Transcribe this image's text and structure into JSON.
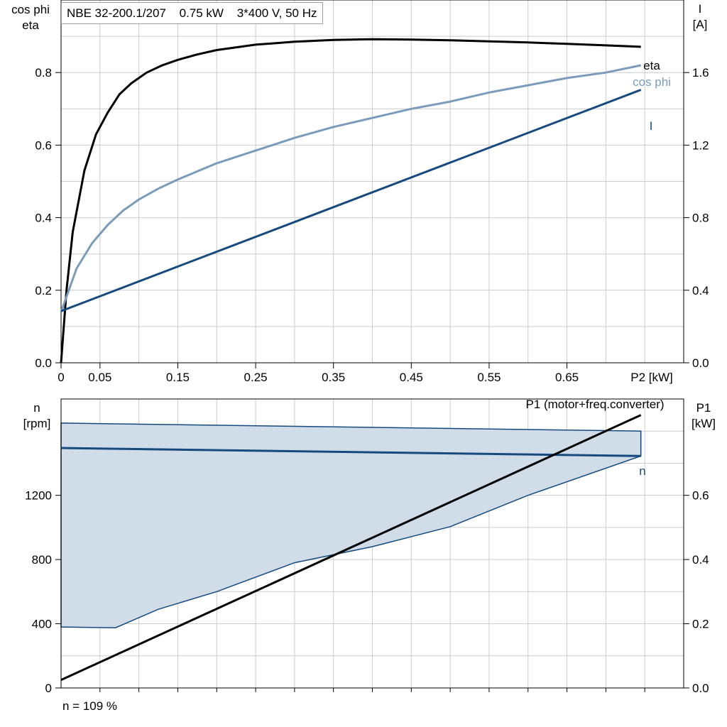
{
  "header": {
    "model": "NBE 32-200.1/207",
    "power": "0.75 kW",
    "supply": "3*400 V, 50 Hz"
  },
  "footer": {
    "speed_note": "n = 109 %"
  },
  "colors": {
    "eta": "#000000",
    "cos_phi": "#7a9cba",
    "current": "#164a7e",
    "speed": "#164a7e",
    "speed_band_fill": "#d0dce8",
    "p1": "#000000",
    "grid": "#cccccc"
  },
  "chart_data": [
    {
      "type": "line",
      "left_axis_label": [
        "cos phi",
        "eta"
      ],
      "right_axis_label": [
        "I",
        "[A]"
      ],
      "xlabel": "P2 [kW]",
      "xlim": [
        0,
        0.8
      ],
      "ylim": [
        0,
        1.0
      ],
      "y2lim": [
        0,
        2.0
      ],
      "x_ticks": [
        "0",
        "0.05",
        "0.15",
        "0.25",
        "0.35",
        "0.45",
        "0.55",
        "0.65"
      ],
      "x_tick_values": [
        0,
        0.05,
        0.15,
        0.25,
        0.35,
        0.45,
        0.55,
        0.65
      ],
      "y_ticks": [
        "0.0",
        "0.2",
        "0.4",
        "0.6",
        "0.8"
      ],
      "y_tick_values": [
        0,
        0.2,
        0.4,
        0.6,
        0.8
      ],
      "y2_ticks": [
        "0.0",
        "0.4",
        "0.8",
        "1.2",
        "1.6"
      ],
      "y2_tick_values": [
        0,
        0.4,
        0.8,
        1.2,
        1.6
      ],
      "grid": true,
      "series": [
        {
          "name": "eta",
          "axis": "left",
          "x": [
            0,
            0.007,
            0.015,
            0.03,
            0.045,
            0.06,
            0.075,
            0.09,
            0.11,
            0.13,
            0.15,
            0.175,
            0.2,
            0.25,
            0.3,
            0.35,
            0.4,
            0.45,
            0.5,
            0.55,
            0.6,
            0.65,
            0.7,
            0.745
          ],
          "values": [
            0,
            0.2,
            0.36,
            0.53,
            0.63,
            0.69,
            0.74,
            0.77,
            0.8,
            0.82,
            0.835,
            0.85,
            0.862,
            0.877,
            0.885,
            0.89,
            0.892,
            0.891,
            0.889,
            0.886,
            0.883,
            0.879,
            0.875,
            0.871
          ]
        },
        {
          "name": "cos phi",
          "axis": "left",
          "x": [
            0,
            0.02,
            0.04,
            0.06,
            0.08,
            0.1,
            0.125,
            0.15,
            0.2,
            0.25,
            0.3,
            0.35,
            0.4,
            0.45,
            0.5,
            0.55,
            0.6,
            0.65,
            0.7,
            0.745
          ],
          "values": [
            0.14,
            0.26,
            0.33,
            0.38,
            0.42,
            0.45,
            0.48,
            0.505,
            0.55,
            0.585,
            0.62,
            0.65,
            0.675,
            0.7,
            0.72,
            0.745,
            0.765,
            0.785,
            0.8,
            0.82
          ]
        },
        {
          "name": "I",
          "axis": "right",
          "x": [
            0,
            0.745
          ],
          "values": [
            0.285,
            1.505
          ]
        }
      ]
    },
    {
      "type": "line",
      "left_axis_label": [
        "n",
        "[rpm]"
      ],
      "right_axis_label": [
        "P1",
        "[kW]"
      ],
      "xlim": [
        0,
        0.8
      ],
      "ylim": [
        0,
        1800
      ],
      "y2lim": [
        0,
        0.9
      ],
      "y_ticks": [
        "0",
        "400",
        "800",
        "1200"
      ],
      "y_tick_values": [
        0,
        400,
        800,
        1200
      ],
      "y2_ticks": [
        "0.0",
        "0.2",
        "0.4",
        "0.6"
      ],
      "y2_tick_values": [
        0,
        0.2,
        0.4,
        0.6
      ],
      "grid": true,
      "series": [
        {
          "name": "n",
          "axis": "left",
          "x": [
            0,
            0.745
          ],
          "values": [
            1495,
            1445
          ]
        },
        {
          "name": "P1 (motor+freq.converter)",
          "axis": "right",
          "x": [
            0,
            0.745
          ],
          "values": [
            0.025,
            0.85
          ]
        }
      ],
      "speed_band": {
        "upper": {
          "x": [
            0,
            0.745
          ],
          "values": [
            1650,
            1600
          ]
        },
        "lower": {
          "x": [
            0,
            0.07,
            0.125,
            0.2,
            0.3,
            0.4,
            0.5,
            0.6,
            0.745
          ],
          "values": [
            380,
            375,
            490,
            600,
            780,
            880,
            1005,
            1200,
            1445
          ]
        }
      }
    }
  ]
}
